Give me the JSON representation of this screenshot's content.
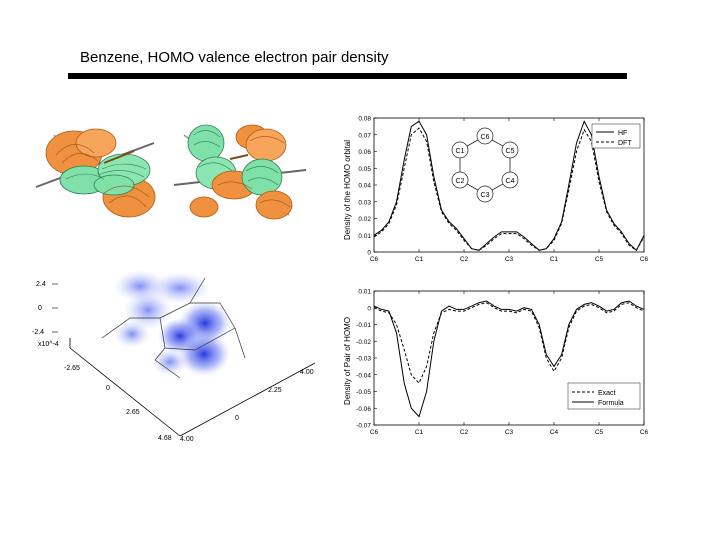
{
  "slide": {
    "title": "Benzene, HOMO valence electron pair density"
  },
  "top_plot": {
    "ylabel": "Density of the HOMO orbital",
    "y_ticks": [
      "0.08",
      "0.07",
      "0.06",
      "0.05",
      "0.04",
      "0.03",
      "0.02",
      "0.01",
      "0"
    ],
    "x_ticks": [
      "C6",
      "C1",
      "C2",
      "C3",
      "C1",
      "C5",
      "C6"
    ],
    "legend": [
      "HF",
      "DFT"
    ],
    "ring_atoms": [
      "C6",
      "C1",
      "C5",
      "C2",
      "C4",
      "C3"
    ]
  },
  "bottom_plot": {
    "ylabel": "Density of Pair of HOMO",
    "y_ticks": [
      "0.01",
      "0",
      "-0.01",
      "-0.02",
      "-0.03",
      "-0.04",
      "-0.05",
      "-0.06",
      "-0.07"
    ],
    "x_ticks": [
      "C6",
      "C1",
      "C2",
      "C3",
      "C4",
      "C5",
      "C6"
    ],
    "legend": [
      "Exact",
      "Formula"
    ]
  },
  "surface_plot": {
    "z_ticks": [
      "2.4",
      "0",
      "-2.4"
    ],
    "y_ticks": [
      "-2.65",
      "0",
      "2.65",
      "4.68"
    ],
    "x_ticks": [
      "4.00",
      "2.25",
      "0",
      "4.00"
    ],
    "z_scale": "x10^-4"
  },
  "chart_data": [
    {
      "type": "line",
      "title": "",
      "xlabel": "",
      "ylabel": "Density of the HOMO orbital",
      "categories": [
        "C6",
        "C1",
        "C2",
        "C3",
        "C1",
        "C5",
        "C6"
      ],
      "x": [
        0,
        0.17,
        0.33,
        0.5,
        0.67,
        0.83,
        1,
        1.17,
        1.33,
        1.5,
        1.67,
        1.83,
        2,
        2.17,
        2.33,
        2.5,
        2.67,
        2.83,
        3,
        3.17,
        3.33,
        3.5,
        3.67,
        3.83,
        4,
        4.17,
        4.33,
        4.5,
        4.67,
        4.83,
        5,
        5.17,
        5.33,
        5.5,
        5.67,
        5.83,
        6
      ],
      "ylim": [
        0,
        0.08
      ],
      "series": [
        {
          "name": "HF",
          "values": [
            0.01,
            0.013,
            0.018,
            0.03,
            0.055,
            0.075,
            0.078,
            0.07,
            0.045,
            0.025,
            0.018,
            0.014,
            0.008,
            0.002,
            0.001,
            0.005,
            0.009,
            0.012,
            0.012,
            0.012,
            0.009,
            0.005,
            0.001,
            0.002,
            0.008,
            0.018,
            0.04,
            0.065,
            0.078,
            0.07,
            0.045,
            0.025,
            0.017,
            0.012,
            0.005,
            0.001,
            0.01
          ]
        },
        {
          "name": "DFT",
          "values": [
            0.009,
            0.012,
            0.017,
            0.028,
            0.05,
            0.07,
            0.074,
            0.066,
            0.042,
            0.024,
            0.017,
            0.013,
            0.007,
            0.002,
            0.001,
            0.004,
            0.008,
            0.011,
            0.011,
            0.011,
            0.008,
            0.004,
            0.001,
            0.002,
            0.007,
            0.017,
            0.037,
            0.06,
            0.073,
            0.066,
            0.042,
            0.024,
            0.016,
            0.011,
            0.004,
            0.001,
            0.009
          ]
        }
      ]
    },
    {
      "type": "line",
      "title": "",
      "xlabel": "",
      "ylabel": "Density of Pair of HOMO",
      "categories": [
        "C6",
        "C1",
        "C2",
        "C3",
        "C4",
        "C5",
        "C6"
      ],
      "x": [
        0,
        0.17,
        0.33,
        0.5,
        0.67,
        0.83,
        1,
        1.17,
        1.33,
        1.5,
        1.67,
        1.83,
        2,
        2.17,
        2.33,
        2.5,
        2.67,
        2.83,
        3,
        3.17,
        3.33,
        3.5,
        3.67,
        3.83,
        4,
        4.17,
        4.33,
        4.5,
        4.67,
        4.83,
        5,
        5.17,
        5.33,
        5.5,
        5.67,
        5.83,
        6
      ],
      "ylim": [
        -0.07,
        0.01
      ],
      "series": [
        {
          "name": "Exact",
          "values": [
            0.0,
            -0.002,
            -0.003,
            -0.01,
            -0.025,
            -0.04,
            -0.045,
            -0.035,
            -0.015,
            -0.003,
            -0.001,
            -0.002,
            -0.002,
            0.0,
            0.002,
            0.003,
            0.0,
            -0.002,
            -0.002,
            -0.003,
            -0.001,
            -0.002,
            -0.012,
            -0.03,
            -0.038,
            -0.03,
            -0.012,
            -0.002,
            0.001,
            0.002,
            0.0,
            -0.003,
            -0.002,
            0.002,
            0.003,
            0.0,
            -0.002
          ]
        },
        {
          "name": "Formula",
          "values": [
            0.001,
            -0.001,
            -0.002,
            -0.015,
            -0.045,
            -0.06,
            -0.065,
            -0.05,
            -0.02,
            -0.002,
            0.001,
            -0.001,
            -0.001,
            0.001,
            0.003,
            0.004,
            0.001,
            -0.001,
            -0.001,
            -0.002,
            0.0,
            -0.001,
            -0.01,
            -0.028,
            -0.035,
            -0.028,
            -0.01,
            -0.001,
            0.002,
            0.003,
            0.001,
            -0.002,
            -0.001,
            0.003,
            0.004,
            0.001,
            -0.001
          ]
        }
      ]
    }
  ]
}
